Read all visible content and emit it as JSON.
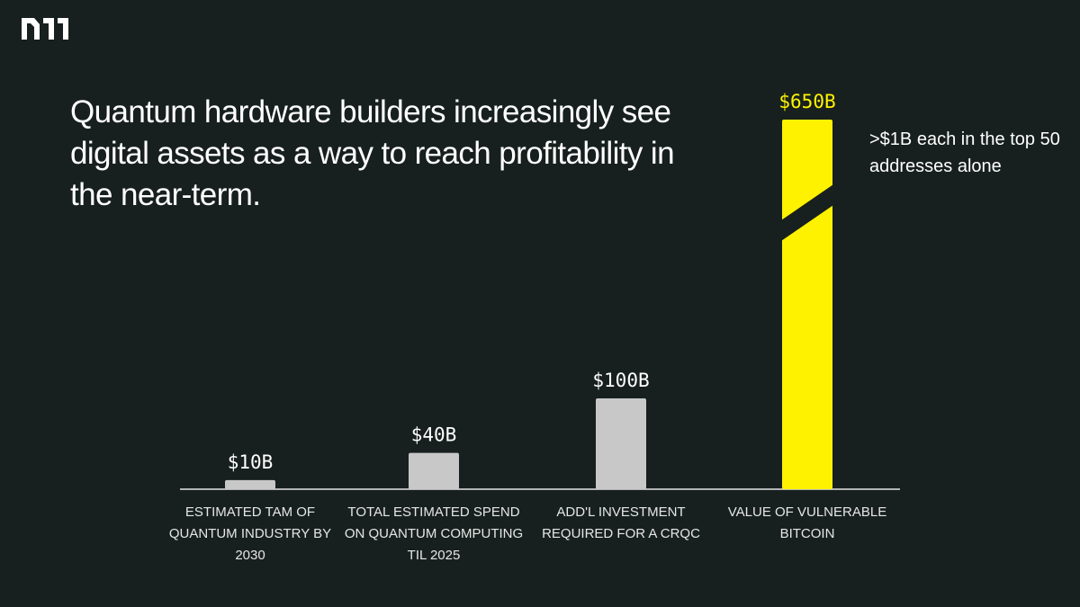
{
  "logo": {
    "name": "n11-logo"
  },
  "headline": "Quantum hardware builders increasingly see digital assets as a way to reach profitability in the near-term.",
  "annotation": ">$1B each in the top 50 addresses alone",
  "colors": {
    "background": "#17201e",
    "bar_default": "#c8c8c8",
    "bar_highlight": "#fff200",
    "axis": "#e6e6e6"
  },
  "chart_data": {
    "type": "bar",
    "title": "",
    "xlabel": "",
    "ylabel": "",
    "axis_break": true,
    "categories": [
      "ESTIMATED TAM OF QUANTUM INDUSTRY BY 2030",
      "TOTAL ESTIMATED SPEND ON QUANTUM COMPUTING TIL 2025",
      "ADD'L INVESTMENT REQUIRED FOR A CRQC",
      "VALUE OF VULNERABLE BITCOIN"
    ],
    "values": [
      10,
      40,
      100,
      650
    ],
    "units": "$B",
    "value_labels": [
      "$10B",
      "$40B",
      "$100B",
      "$650B"
    ],
    "highlight_index": 3
  }
}
